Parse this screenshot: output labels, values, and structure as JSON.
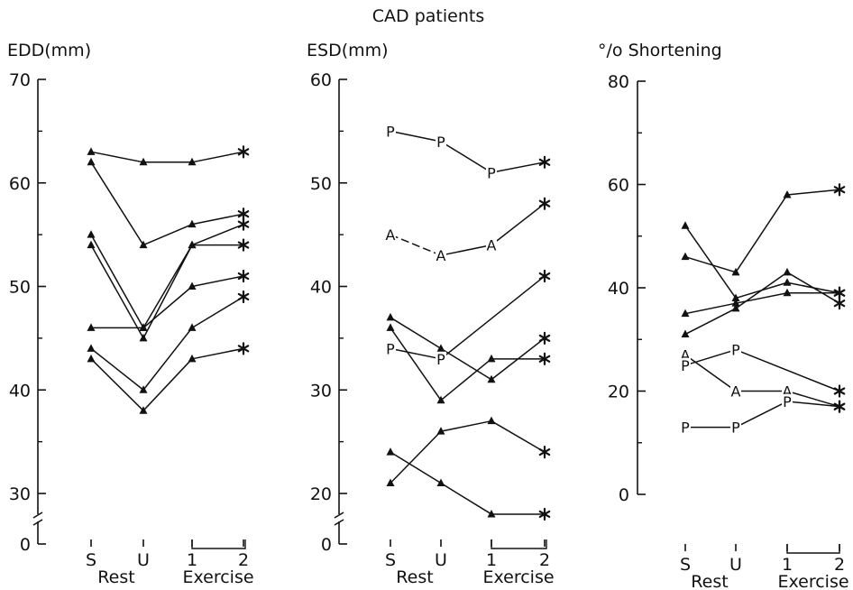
{
  "figure_title": "CAD patients",
  "chart_data": [
    {
      "type": "line",
      "ylabel": "EDD(mm)",
      "ylim": [
        30,
        70
      ],
      "yticks": [
        "70",
        "60",
        "50",
        "40",
        "30"
      ],
      "axis_break": true,
      "zero_label": "0",
      "categories": [
        "S",
        "U",
        "1",
        "2"
      ],
      "group_labels": [
        "Rest",
        "Exercise"
      ],
      "series": [
        {
          "values": [
            63,
            62,
            62,
            63
          ],
          "markers": [
            "tri",
            "tri",
            "tri",
            "star"
          ]
        },
        {
          "values": [
            62,
            54,
            56,
            57
          ],
          "markers": [
            "tri",
            "tri",
            "tri",
            "star"
          ]
        },
        {
          "values": [
            55,
            46,
            54,
            54
          ],
          "markers": [
            "tri",
            "tri",
            "tri",
            "star"
          ]
        },
        {
          "values": [
            54,
            45,
            54,
            56
          ],
          "markers": [
            "tri",
            "tri",
            "tri",
            "star"
          ]
        },
        {
          "values": [
            46,
            46,
            50,
            51
          ],
          "markers": [
            "tri",
            "tri",
            "tri",
            "star"
          ]
        },
        {
          "values": [
            44,
            40,
            46,
            49
          ],
          "markers": [
            "tri",
            "tri",
            "tri",
            "star"
          ]
        },
        {
          "values": [
            43,
            38,
            43,
            44
          ],
          "markers": [
            "tri",
            "tri",
            "tri",
            "star"
          ]
        }
      ]
    },
    {
      "type": "line",
      "ylabel": "ESD(mm)",
      "ylim": [
        20,
        60
      ],
      "yticks": [
        "60",
        "50",
        "40",
        "30",
        "20"
      ],
      "axis_break": true,
      "zero_label": "0",
      "categories": [
        "S",
        "U",
        "1",
        "2"
      ],
      "group_labels": [
        "Rest",
        "Exercise"
      ],
      "series": [
        {
          "values": [
            55,
            54,
            51,
            52
          ],
          "markers": [
            "P",
            "P",
            "P",
            "star"
          ]
        },
        {
          "values": [
            45,
            43,
            44,
            48
          ],
          "markers": [
            "A",
            "A",
            "A",
            "star"
          ],
          "dashed_first_segment": true
        },
        {
          "values": [
            37,
            34,
            31,
            35
          ],
          "markers": [
            "tri",
            "tri",
            "tri",
            "star"
          ]
        },
        {
          "values": [
            36,
            29,
            33,
            33
          ],
          "markers": [
            "tri",
            "tri",
            "tri",
            "star"
          ]
        },
        {
          "values": [
            34,
            33,
            null,
            41
          ],
          "markers": [
            "P",
            "P",
            "",
            "star"
          ]
        },
        {
          "values": [
            24,
            21,
            18,
            18
          ],
          "markers": [
            "tri",
            "tri",
            "tri",
            "star"
          ]
        },
        {
          "values": [
            21,
            26,
            27,
            24
          ],
          "markers": [
            "tri",
            "tri",
            "tri",
            "star"
          ]
        }
      ]
    },
    {
      "type": "line",
      "ylabel": "°/o Shortening",
      "ylim": [
        0,
        80
      ],
      "yticks": [
        "80",
        "60",
        "40",
        "20",
        "0"
      ],
      "axis_break": false,
      "categories": [
        "S",
        "U",
        "1",
        "2"
      ],
      "group_labels": [
        "Rest",
        "Exercise"
      ],
      "series": [
        {
          "values": [
            52,
            38,
            41,
            39
          ],
          "markers": [
            "tri",
            "tri",
            "tri",
            "star"
          ]
        },
        {
          "values": [
            46,
            43,
            58,
            59
          ],
          "markers": [
            "tri",
            "tri",
            "tri",
            "star"
          ]
        },
        {
          "values": [
            35,
            37,
            39,
            39
          ],
          "markers": [
            "tri",
            "tri",
            "tri",
            "star"
          ]
        },
        {
          "values": [
            31,
            36,
            43,
            37
          ],
          "markers": [
            "tri",
            "tri",
            "tri",
            "star"
          ]
        },
        {
          "values": [
            27,
            20,
            20,
            17
          ],
          "markers": [
            "A",
            "A",
            "A",
            "star"
          ]
        },
        {
          "values": [
            25,
            28,
            null,
            20
          ],
          "markers": [
            "P",
            "P",
            "",
            "star"
          ]
        },
        {
          "values": [
            13,
            13,
            18,
            17
          ],
          "markers": [
            "P",
            "P",
            "P",
            "star"
          ]
        }
      ]
    }
  ]
}
